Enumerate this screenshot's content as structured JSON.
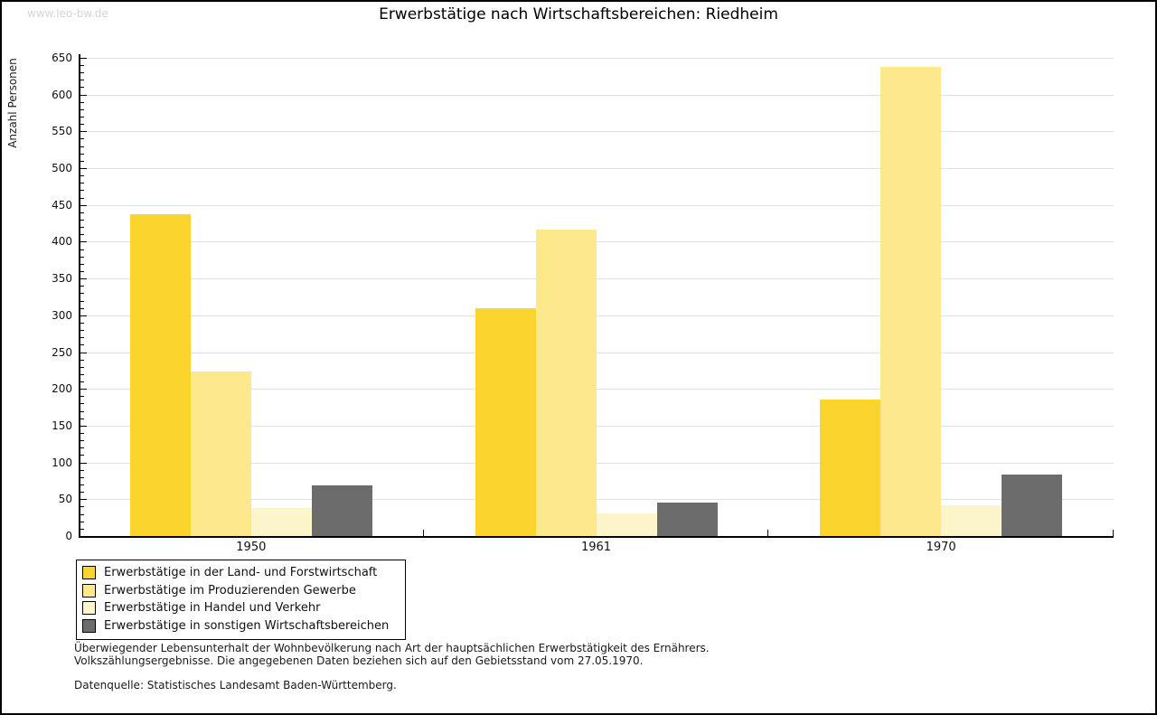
{
  "watermark": "www.leo-bw.de",
  "title": "Erwerbstätige nach Wirtschaftsbereichen: Riedheim",
  "chart_data": {
    "type": "bar",
    "title": "Erwerbstätige nach Wirtschaftsbereichen: Riedheim",
    "xlabel": "",
    "ylabel": "Anzahl Personen",
    "ylim": [
      0,
      650
    ],
    "yticks": [
      0,
      50,
      100,
      150,
      200,
      250,
      300,
      350,
      400,
      450,
      500,
      550,
      600,
      650
    ],
    "y_minor_step": 10,
    "grid": true,
    "legend_position": "bottom-left",
    "categories": [
      "1950",
      "1961",
      "1970"
    ],
    "series": [
      {
        "name": "Erwerbstätige in der Land- und Forstwirtschaft",
        "color": "#fbd42e",
        "values": [
          437,
          309,
          186
        ]
      },
      {
        "name": "Erwerbstätige im Produzierenden Gewerbe",
        "color": "#fde98b",
        "values": [
          223,
          417,
          637
        ]
      },
      {
        "name": "Erwerbstätige in Handel und Verkehr",
        "color": "#fcf5c9",
        "values": [
          38,
          31,
          42
        ]
      },
      {
        "name": "Erwerbstätige in sonstigen Wirtschaftsbereichen",
        "color": "#6c6c6c",
        "values": [
          69,
          46,
          83
        ]
      }
    ]
  },
  "footnotes": [
    "Überwiegender Lebensunterhalt der Wohnbevölkerung nach Art der hauptsächlichen Erwerbstätigkeit des Ernährers.",
    "Volkszählungsergebnisse. Die angegebenen Daten beziehen sich auf den Gebietsstand vom 27.05.1970."
  ],
  "source": "Datenquelle: Statistisches Landesamt Baden-Württemberg.",
  "colors": {
    "axis": "#000000",
    "gridline": "#e1e1e1",
    "watermark": "#d5d5d5"
  }
}
